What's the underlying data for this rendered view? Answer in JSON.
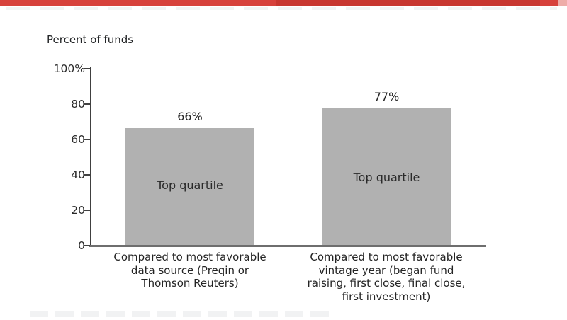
{
  "decor": {
    "top_rule_color": "#d7423c",
    "top_rule_dark_color": "#c83730",
    "top_rule_tail_color": "#eeada9"
  },
  "chart_data": {
    "type": "bar",
    "title": "Percent of funds",
    "categories": [
      "Compared to most favorable\ndata source (Preqin or\nThomson Reuters)",
      "Compared to most favorable\nvintage year (began fund\nraising, first close, final close,\nfirst investment)"
    ],
    "values": [
      66,
      77
    ],
    "value_labels": [
      "66%",
      "77%"
    ],
    "bar_labels": [
      "Top quartile",
      "Top quartile"
    ],
    "yticks": [
      "100%",
      "80",
      "60",
      "40",
      "20",
      "0"
    ],
    "ylim": [
      0,
      100
    ],
    "xlabel": "",
    "ylabel": "Percent of funds",
    "grid": false,
    "legend": "none",
    "bar_color": "#b1b1b1",
    "axis_color": "#404040",
    "baseline_color": "#6e6e6e"
  }
}
